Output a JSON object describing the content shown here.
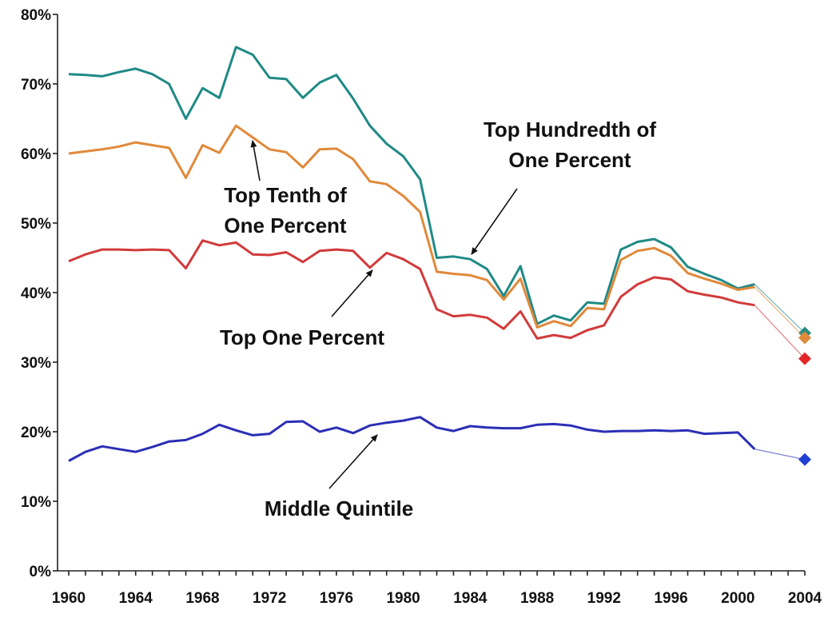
{
  "chart_data": {
    "type": "line",
    "title": "",
    "xlabel": "",
    "ylabel": "",
    "xlim": [
      1960,
      2004
    ],
    "ylim": [
      0,
      80
    ],
    "grid": false,
    "legend": "none",
    "x_ticks": [
      "1960",
      "1964",
      "1968",
      "1972",
      "1976",
      "1980",
      "1984",
      "1988",
      "1992",
      "1996",
      "2000",
      "2004"
    ],
    "y_ticks": [
      "0%",
      "10%",
      "20%",
      "30%",
      "40%",
      "50%",
      "60%",
      "70%",
      "80%"
    ],
    "x": [
      1960,
      1961,
      1962,
      1963,
      1964,
      1965,
      1966,
      1967,
      1968,
      1969,
      1970,
      1971,
      1972,
      1973,
      1974,
      1975,
      1976,
      1977,
      1978,
      1979,
      1980,
      1981,
      1982,
      1983,
      1984,
      1985,
      1986,
      1987,
      1988,
      1989,
      1990,
      1991,
      1992,
      1993,
      1994,
      1995,
      1996,
      1997,
      1998,
      1999,
      2000,
      2001
    ],
    "series": [
      {
        "id": "top-hundredth",
        "color": "#1f8a86",
        "marker_color": "#2a8e82",
        "values": [
          71.4,
          71.3,
          71.1,
          71.7,
          72.2,
          71.4,
          70.0,
          65.0,
          69.4,
          68.0,
          75.3,
          74.2,
          70.9,
          70.7,
          68.0,
          70.2,
          71.3,
          67.9,
          64.0,
          61.4,
          59.6,
          56.3,
          45.0,
          45.2,
          44.8,
          43.4,
          39.5,
          43.8,
          35.5,
          36.7,
          36.0,
          38.6,
          38.4,
          46.2,
          47.3,
          47.7,
          46.5,
          43.7,
          42.7,
          41.8,
          40.6,
          41.2
        ],
        "projected": {
          "x": 2004,
          "value": 34.2
        }
      },
      {
        "id": "top-tenth",
        "color": "#e0893a",
        "marker_color": "#e0893a",
        "values": [
          60.0,
          60.3,
          60.6,
          61.0,
          61.6,
          61.2,
          60.8,
          56.5,
          61.2,
          60.1,
          64.0,
          62.3,
          60.6,
          60.2,
          58.0,
          60.6,
          60.7,
          59.2,
          56.0,
          55.6,
          53.9,
          51.6,
          43.0,
          42.7,
          42.5,
          41.8,
          39.0,
          42.0,
          35.0,
          35.9,
          35.2,
          37.8,
          37.6,
          44.7,
          46.0,
          46.4,
          45.3,
          42.8,
          42.0,
          41.3,
          40.4,
          40.8
        ],
        "projected": {
          "x": 2004,
          "value": 33.5
        }
      },
      {
        "id": "top-one-percent",
        "color": "#d23a3a",
        "marker_color": "#e32727",
        "values": [
          44.5,
          45.5,
          46.2,
          46.2,
          46.1,
          46.2,
          46.1,
          43.5,
          47.5,
          46.8,
          47.2,
          45.5,
          45.4,
          45.8,
          44.4,
          46.0,
          46.2,
          46.0,
          43.6,
          45.7,
          44.8,
          43.4,
          37.6,
          36.6,
          36.8,
          36.4,
          34.8,
          37.3,
          33.4,
          33.9,
          33.5,
          34.6,
          35.3,
          39.4,
          41.2,
          42.2,
          41.9,
          40.2,
          39.7,
          39.3,
          38.6,
          38.2
        ],
        "projected": {
          "x": 2004,
          "value": 30.5
        }
      },
      {
        "id": "middle-quintile",
        "color": "#2b2fb5",
        "marker_color": "#1f3fd4",
        "values": [
          15.8,
          17.1,
          17.9,
          17.5,
          17.1,
          17.8,
          18.6,
          18.8,
          19.7,
          21.0,
          20.2,
          19.5,
          19.7,
          21.4,
          21.5,
          20.0,
          20.6,
          19.8,
          20.9,
          21.3,
          21.6,
          22.1,
          20.6,
          20.1,
          20.8,
          20.6,
          20.5,
          20.5,
          21.0,
          21.1,
          20.9,
          20.3,
          20.0,
          20.1,
          20.1,
          20.2,
          20.1,
          20.2,
          19.7,
          19.8,
          19.9,
          17.5
        ],
        "projected": {
          "x": 2004,
          "value": 16.0
        }
      }
    ],
    "annotations": [
      {
        "id": "top-hundredth",
        "lines": [
          "Top Hundredth of",
          "One Percent"
        ]
      },
      {
        "id": "top-tenth",
        "lines": [
          "Top Tenth of",
          "One Percent"
        ]
      },
      {
        "id": "top-one-percent",
        "lines": [
          "Top One Percent"
        ]
      },
      {
        "id": "middle-quintile",
        "lines": [
          "Middle Quintile"
        ]
      }
    ]
  }
}
